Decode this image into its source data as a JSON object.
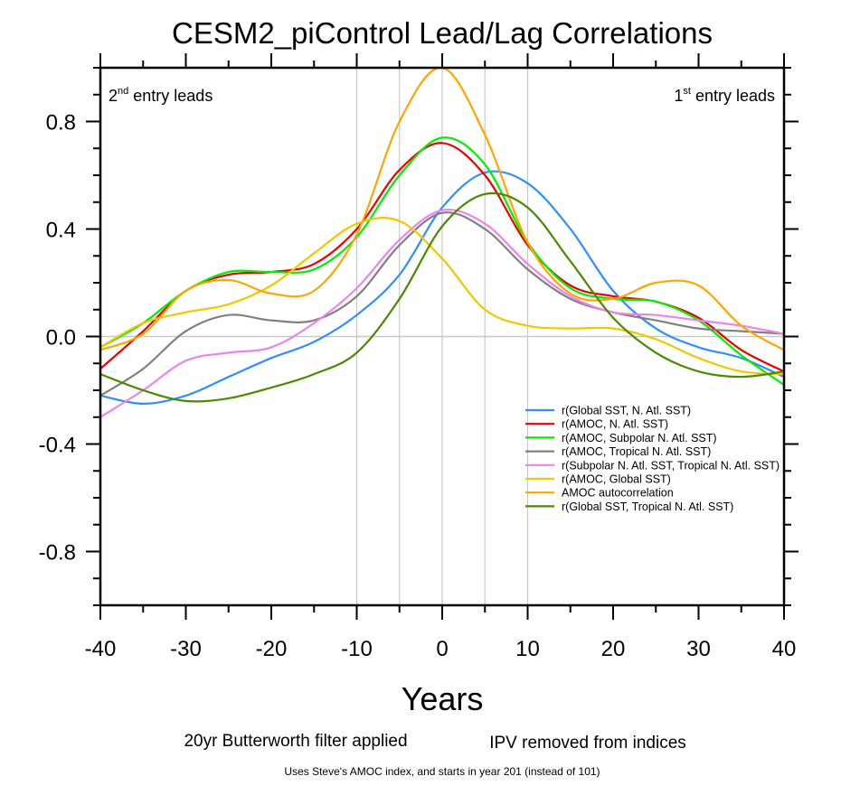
{
  "chart_data": {
    "type": "line",
    "title": "CESM2_piControl Lead/Lag Correlations",
    "xlabel": "Years",
    "ylabel": "",
    "xlim": [
      -40,
      40
    ],
    "ylim": [
      -1.0,
      1.0
    ],
    "xticks": [
      -40,
      -30,
      -20,
      -10,
      0,
      10,
      20,
      30,
      40
    ],
    "xtick_labels": [
      "-40",
      "-30",
      "-20",
      "-10",
      "0",
      "10",
      "20",
      "30",
      "40"
    ],
    "yticks": [
      0.8,
      0.4,
      0.0,
      -0.4,
      -0.8
    ],
    "ytick_labels": [
      "0.8",
      "0.4",
      "0.0",
      "-0.4",
      "-0.8"
    ],
    "reference_lines": {
      "horizontal": [
        0.0
      ],
      "vertical": [
        -10,
        -5,
        0,
        5,
        10
      ]
    },
    "annotations": {
      "left": {
        "base": "2",
        "sup": "nd",
        "text": " entry leads"
      },
      "right": {
        "base": "1",
        "sup": "st",
        "text": " entry leads"
      }
    },
    "legend_position": "lower-right",
    "x": [
      -40,
      -35,
      -30,
      -25,
      -20,
      -15,
      -10,
      -5,
      0,
      5,
      10,
      15,
      20,
      25,
      30,
      35,
      40
    ],
    "series": [
      {
        "name": "r(Global SST, N. Atl. SST)",
        "color": "#2f8fff",
        "values": [
          -0.22,
          -0.25,
          -0.22,
          -0.15,
          -0.08,
          -0.02,
          0.08,
          0.23,
          0.48,
          0.61,
          0.57,
          0.4,
          0.17,
          0.03,
          -0.04,
          -0.08,
          -0.15
        ]
      },
      {
        "name": "r(AMOC, N. Atl. SST)",
        "color": "#ee0000",
        "values": [
          -0.12,
          0.02,
          0.17,
          0.23,
          0.24,
          0.27,
          0.4,
          0.62,
          0.72,
          0.6,
          0.34,
          0.19,
          0.15,
          0.13,
          0.07,
          -0.05,
          -0.13
        ]
      },
      {
        "name": "r(AMOC, Subpolar N. Atl. SST)",
        "color": "#00ee00",
        "values": [
          -0.04,
          0.05,
          0.17,
          0.24,
          0.24,
          0.25,
          0.37,
          0.6,
          0.74,
          0.64,
          0.35,
          0.18,
          0.14,
          0.13,
          0.06,
          -0.07,
          -0.18
        ]
      },
      {
        "name": "r(AMOC, Tropical N. Atl. SST)",
        "color": "#808080",
        "values": [
          -0.22,
          -0.12,
          0.02,
          0.08,
          0.06,
          0.06,
          0.15,
          0.34,
          0.46,
          0.4,
          0.25,
          0.14,
          0.09,
          0.06,
          0.03,
          0.02,
          0.01
        ]
      },
      {
        "name": "r(Subpolar N. Atl. SST, Tropical N. Atl. SST)",
        "color": "#ee82ee",
        "values": [
          -0.3,
          -0.2,
          -0.09,
          -0.06,
          -0.04,
          0.05,
          0.18,
          0.36,
          0.47,
          0.42,
          0.27,
          0.15,
          0.09,
          0.08,
          0.06,
          0.04,
          0.01
        ]
      },
      {
        "name": "r(AMOC, Global SST)",
        "color": "#eec900",
        "values": [
          -0.04,
          0.05,
          0.09,
          0.12,
          0.19,
          0.31,
          0.42,
          0.43,
          0.29,
          0.1,
          0.04,
          0.03,
          0.03,
          -0.01,
          -0.08,
          -0.13,
          -0.14
        ]
      },
      {
        "name": "AMOC autocorrelation",
        "color": "#ffa500",
        "values": [
          -0.05,
          0.01,
          0.17,
          0.21,
          0.16,
          0.17,
          0.38,
          0.8,
          1.0,
          0.75,
          0.35,
          0.16,
          0.14,
          0.2,
          0.19,
          0.04,
          -0.05
        ]
      },
      {
        "name": "r(Global SST, Tropical N. Atl. SST)",
        "color": "#4a8a00",
        "values": [
          -0.14,
          -0.2,
          -0.24,
          -0.23,
          -0.19,
          -0.14,
          -0.06,
          0.14,
          0.41,
          0.53,
          0.48,
          0.28,
          0.07,
          -0.06,
          -0.13,
          -0.15,
          -0.13
        ]
      }
    ]
  },
  "notes": {
    "filter": "20yr Butterworth filter applied",
    "ipv": "IPV removed from indices",
    "source": "Uses Steve's AMOC index, and starts in year 201 (instead of 101)"
  }
}
